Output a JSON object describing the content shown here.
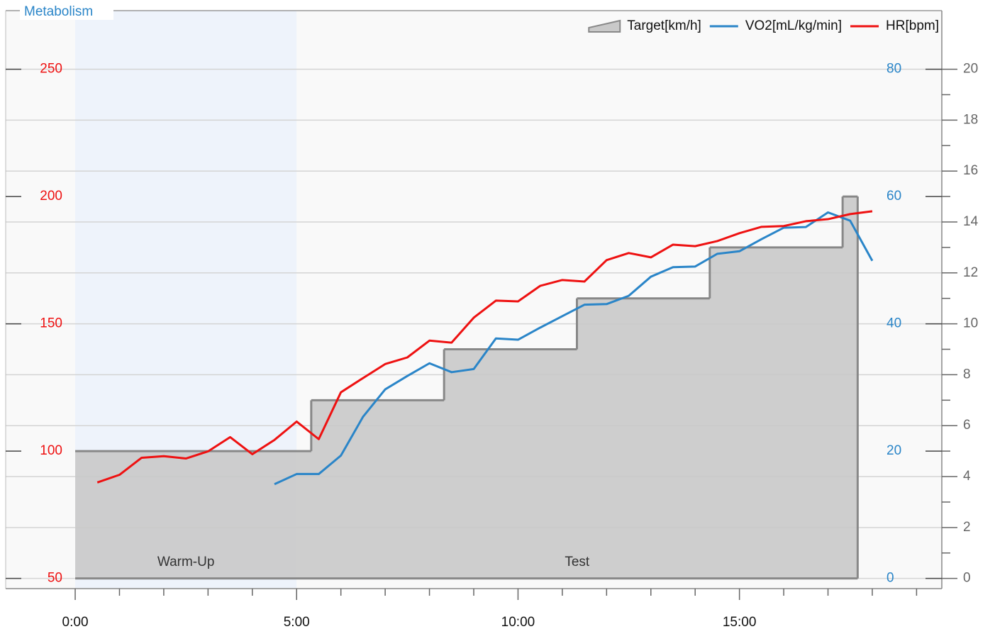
{
  "chart_data": {
    "type": "line",
    "title": "Metabolism",
    "xlim": [
      -1.57,
      19.57
    ],
    "xticks": [
      {
        "value": 0,
        "label": "0:00"
      },
      {
        "value": 5,
        "label": "5:00"
      },
      {
        "value": 10,
        "label": "10:00"
      },
      {
        "value": 15,
        "label": "15:00"
      }
    ],
    "xminorticks": [
      1,
      2,
      3,
      4,
      6,
      7,
      8,
      9,
      11,
      12,
      13,
      14,
      16,
      17,
      18,
      19
    ],
    "ylim": [
      46,
      273
    ],
    "yticks": [
      50,
      100,
      150,
      200,
      250
    ],
    "y2lim": [
      -1.6,
      89.2
    ],
    "y2ticks": [
      0,
      20,
      40,
      60,
      80
    ],
    "y3lim": [
      -0.4,
      22.3
    ],
    "y3ticks": [
      0,
      2,
      4,
      6,
      8,
      10,
      12,
      14,
      16,
      18,
      20
    ],
    "y3minorticks": [
      1,
      3,
      5,
      7,
      9,
      11,
      13,
      15,
      17,
      19
    ],
    "grid": true,
    "legend": "top-right",
    "phases": [
      {
        "label": "Warm-Up",
        "start": 0,
        "end": 5,
        "color": "#eef3fb"
      },
      {
        "label": "Test",
        "start": 5,
        "end": 17.67,
        "color": "#f9f9f9"
      }
    ],
    "series": [
      {
        "name": "Target[km/h]",
        "color": "#888888",
        "fill": "#c9c9c9",
        "axis": "y3",
        "step": "post",
        "x": [
          0,
          5.33,
          8.33,
          11.33,
          14.33,
          17.33
        ],
        "x_end": [
          5.33,
          8.33,
          11.33,
          14.33,
          17.33,
          17.67
        ],
        "values": [
          5,
          7,
          9,
          11,
          13,
          15
        ]
      },
      {
        "name": "VO2[mL/kg/min]",
        "color": "#2a85c8",
        "axis": "y2",
        "x": [
          4.5,
          5,
          5.5,
          6,
          6.5,
          7,
          7.5,
          8,
          8.5,
          9,
          9.5,
          10,
          10.5,
          11,
          11.5,
          12,
          12.5,
          13,
          13.5,
          14,
          14.5,
          15,
          15.5,
          16,
          16.5,
          17,
          17.5,
          18
        ],
        "values": [
          14.8,
          16.4,
          16.4,
          19.3,
          25.4,
          29.7,
          31.8,
          33.8,
          32.4,
          32.9,
          37.7,
          37.5,
          39.4,
          41.2,
          43.0,
          43.1,
          44.4,
          47.4,
          48.9,
          49.0,
          51.0,
          51.4,
          53.3,
          55.1,
          55.2,
          57.5,
          56.2,
          49.9
        ]
      },
      {
        "name": "HR[bpm]",
        "color": "#ee1111",
        "axis": "y",
        "x": [
          0.5,
          1,
          1.5,
          2,
          2.5,
          3,
          3.5,
          4,
          4.5,
          5,
          5.5,
          6,
          6.5,
          7,
          7.5,
          8,
          8.5,
          9,
          9.5,
          10,
          10.5,
          11,
          11.5,
          12,
          12.5,
          13,
          13.5,
          14,
          14.5,
          15,
          15.5,
          16,
          16.5,
          17,
          17.5,
          18
        ],
        "values": [
          87.7,
          90.7,
          97.4,
          98.0,
          97.1,
          99.9,
          105.5,
          98.8,
          104.4,
          111.6,
          104.7,
          123.1,
          128.7,
          134.2,
          136.8,
          143.4,
          142.6,
          152.4,
          159.1,
          158.8,
          164.9,
          167.2,
          166.6,
          175.0,
          177.8,
          176.1,
          181.1,
          180.5,
          182.5,
          185.6,
          188.1,
          188.4,
          190.3,
          191.1,
          193.1,
          194.2
        ]
      }
    ]
  }
}
